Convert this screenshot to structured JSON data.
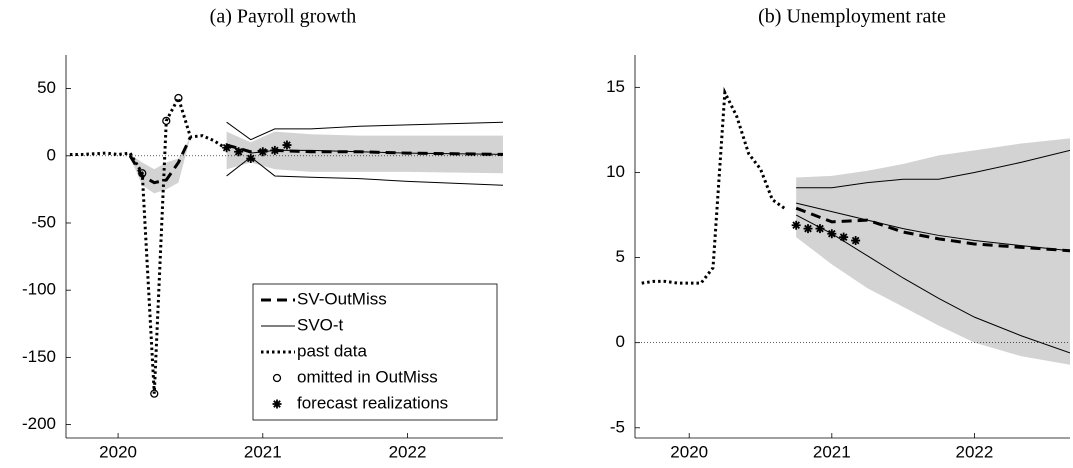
{
  "chart_data": [
    {
      "type": "line",
      "title": "(a) Payroll growth",
      "xlim": [
        2019.64,
        2022.66
      ],
      "xticks": [
        2020,
        2021,
        2022
      ],
      "ylim": [
        -210,
        75
      ],
      "yticks": [
        50,
        0,
        -50,
        -100,
        -150,
        -200
      ],
      "reference_line": 0,
      "legend": "lower right",
      "band": {
        "color": "#d3d3d3",
        "x": [
          2020.083,
          2020.167,
          2020.25,
          2020.333,
          2020.417,
          2020.5,
          2020.583,
          2020.75,
          2020.917,
          2021.083,
          2021.333,
          2021.667,
          2022.0,
          2022.67
        ],
        "upper": [
          1,
          -5,
          -10,
          -5,
          -2,
          14,
          null,
          18,
          10,
          18,
          16,
          15,
          15,
          15
        ],
        "lower": [
          -1,
          -22,
          -28,
          -25,
          -20,
          14,
          null,
          -10,
          -5,
          -10,
          -12,
          -12,
          -12,
          -13
        ]
      },
      "series": [
        {
          "name": "SV-OutMiss",
          "style": "dashed",
          "color": "#000000",
          "x": [
            2020.083,
            2020.167,
            2020.25,
            2020.333,
            2020.417,
            2020.5,
            2020.583,
            2020.75,
            2020.917,
            2021.083,
            2021.333,
            2021.667,
            2022.0,
            2022.67
          ],
          "values": [
            0,
            -15,
            -20,
            -18,
            -5,
            14,
            null,
            8,
            3,
            4,
            3,
            3,
            2,
            1
          ]
        },
        {
          "name": "SVO-t",
          "style": "solid",
          "color": "#000000",
          "x": [
            2020.75,
            2020.917,
            2021.083,
            2021.333,
            2021.667,
            2022.0,
            2022.67
          ],
          "values": [
            8,
            2,
            4,
            4,
            3,
            2,
            1
          ],
          "upper": [
            25,
            12,
            20,
            20,
            22,
            23,
            25
          ],
          "lower": [
            -15,
            -1,
            -15,
            -16,
            -17,
            -19,
            -22
          ]
        },
        {
          "name": "past data",
          "style": "dotted",
          "color": "#000000",
          "x": [
            2019.667,
            2019.75,
            2019.833,
            2019.917,
            2020.0,
            2020.083,
            2020.167,
            2020.25,
            2020.333,
            2020.417,
            2020.5,
            2020.583,
            2020.667,
            2020.75
          ],
          "values": [
            1,
            1,
            1.5,
            2,
            1,
            2,
            -13,
            -177,
            26,
            43,
            14,
            15,
            11,
            5
          ]
        },
        {
          "name": "omitted in OutMiss",
          "style": "circle",
          "color": "#000000",
          "x": [
            2020.167,
            2020.25,
            2020.333,
            2020.417
          ],
          "values": [
            -13,
            -177,
            26,
            43
          ]
        },
        {
          "name": "forecast realizations",
          "style": "star",
          "color": "#000000",
          "x": [
            2020.75,
            2020.833,
            2020.917,
            2021.0,
            2021.083,
            2021.167
          ],
          "values": [
            6,
            3,
            -2,
            3,
            4,
            8
          ]
        }
      ]
    },
    {
      "type": "line",
      "title": "(b) Unemployment rate",
      "xlim": [
        2019.62,
        2022.67
      ],
      "xticks": [
        2020,
        2021,
        2022
      ],
      "ylim": [
        -5.6,
        16.9
      ],
      "yticks": [
        15,
        10,
        5,
        0,
        -5
      ],
      "reference_line": 0,
      "band": {
        "color": "#d3d3d3",
        "x": [
          2020.75,
          2021.0,
          2021.25,
          2021.5,
          2021.75,
          2022.0,
          2022.33,
          2022.67
        ],
        "upper": [
          9.7,
          9.8,
          10.1,
          10.5,
          11.0,
          11.3,
          11.7,
          12.0
        ],
        "lower": [
          6.2,
          4.6,
          3.2,
          2.1,
          1.0,
          0.0,
          -0.8,
          -1.3
        ]
      },
      "series": [
        {
          "style": "dashed",
          "color": "#000000",
          "x": [
            2020.75,
            2021.0,
            2021.25,
            2021.5,
            2021.75,
            2022.0,
            2022.33,
            2022.67
          ],
          "values": [
            7.9,
            7.1,
            7.2,
            6.5,
            6.1,
            5.8,
            5.6,
            5.4
          ]
        },
        {
          "style": "solid",
          "color": "#000000",
          "x": [
            2020.75,
            2021.0,
            2021.25,
            2021.5,
            2021.75,
            2022.0,
            2022.33,
            2022.67
          ],
          "values": [
            8.2,
            7.7,
            7.2,
            6.7,
            6.3,
            6.0,
            5.7,
            5.4
          ],
          "upper": [
            9.1,
            9.1,
            9.4,
            9.6,
            9.6,
            10.0,
            10.6,
            11.3
          ],
          "lower": [
            7.5,
            6.4,
            5.1,
            3.8,
            2.6,
            1.5,
            0.4,
            -0.6
          ]
        },
        {
          "style": "dotted",
          "color": "#000000",
          "x": [
            2019.667,
            2019.75,
            2019.833,
            2019.917,
            2020.0,
            2020.083,
            2020.167,
            2020.25,
            2020.333,
            2020.417,
            2020.5,
            2020.583,
            2020.667
          ],
          "values": [
            3.5,
            3.6,
            3.6,
            3.5,
            3.5,
            3.5,
            4.4,
            14.7,
            13.3,
            11.1,
            10.2,
            8.4,
            7.9
          ]
        },
        {
          "style": "star",
          "color": "#000000",
          "x": [
            2020.75,
            2020.833,
            2020.917,
            2021.0,
            2021.083,
            2021.167
          ],
          "values": [
            6.9,
            6.7,
            6.7,
            6.4,
            6.2,
            6.0
          ]
        }
      ]
    }
  ]
}
